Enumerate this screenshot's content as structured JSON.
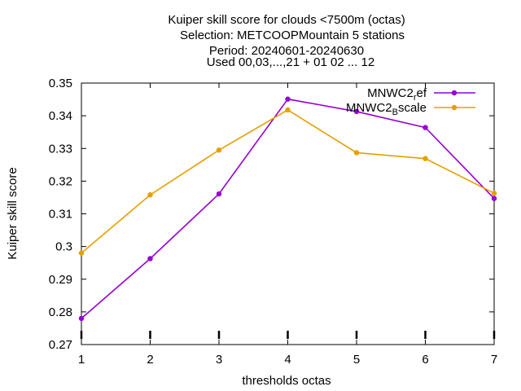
{
  "chart_data": {
    "type": "line",
    "title_lines": [
      "Kuiper skill score  for clouds <7500m (octas)",
      "Selection: METCOOPMountain      5 stations",
      "Period: 20240601-20240630",
      "Used 00,03,...,21 + 01 02 ... 12"
    ],
    "xlabel": "thresholds octas",
    "ylabel": "Kuiper skill score",
    "xlim": [
      1,
      7
    ],
    "ylim": [
      0.27,
      0.35
    ],
    "xticks": [
      "1",
      "2",
      "3",
      "4",
      "5",
      "6",
      "7"
    ],
    "yticks": [
      "0.27",
      "0.28",
      "0.29",
      "0.3",
      "0.31",
      "0.32",
      "0.33",
      "0.34",
      "0.35"
    ],
    "grid": false,
    "legend_position": "top-right",
    "x": [
      1,
      2,
      3,
      4,
      5,
      6,
      7
    ],
    "series": [
      {
        "name_base": "MNWC2",
        "name_sub": "r",
        "name_tail": "ef",
        "color": "#9400d3",
        "values": [
          0.278,
          0.2963,
          0.3161,
          0.3451,
          0.3413,
          0.3364,
          0.3147
        ]
      },
      {
        "name_base": "MNWC2",
        "name_sub": "B",
        "name_tail": "scale",
        "color": "#e69f00",
        "values": [
          0.298,
          0.3158,
          0.3295,
          0.3418,
          0.3287,
          0.3269,
          0.3163
        ]
      }
    ]
  }
}
